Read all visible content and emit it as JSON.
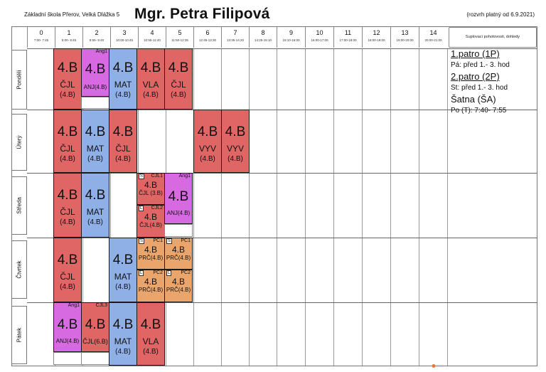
{
  "header": {
    "school": "Základní škola Přerov, Velká Dlážka 5",
    "teacher": "Mgr. Petra Filipová",
    "validity": "(rozvrh platný od 6.9.2021)"
  },
  "periods": [
    {
      "num": "0",
      "time": "7:00- 7:45"
    },
    {
      "num": "1",
      "time": "8:00- 8:45"
    },
    {
      "num": "2",
      "time": "8:55- 9:40"
    },
    {
      "num": "3",
      "time": "10:00-10:45"
    },
    {
      "num": "4",
      "time": "10:55-11:40"
    },
    {
      "num": "5",
      "time": "11:50-12:35"
    },
    {
      "num": "6",
      "time": "12:45-13:30"
    },
    {
      "num": "7",
      "time": "13:35-14:20"
    },
    {
      "num": "8",
      "time": "14:25-15:10"
    },
    {
      "num": "9",
      "time": "15:10-16:00"
    },
    {
      "num": "10",
      "time": "16:00-17:00"
    },
    {
      "num": "11",
      "time": "17:00-18:00"
    },
    {
      "num": "12",
      "time": "18:00-19:00"
    },
    {
      "num": "13",
      "time": "19:00-20:00"
    },
    {
      "num": "14",
      "time": "20:00-21:00"
    }
  ],
  "side_header": "Suplovací pohotovosti, dohledy",
  "days": [
    "Pondělí",
    "Úterý",
    "Středa",
    "Čtvrtek",
    "Pátek"
  ],
  "lessons": {
    "mon": [
      {
        "cls": "4.B",
        "subj": "ČJL",
        "grp": "(4.B)"
      },
      {
        "cls": "4.B",
        "subj": "ANJ(4.B)",
        "tag": "Ang1"
      },
      {
        "cls": "4.B",
        "subj": "MAT",
        "grp": "(4.B)"
      },
      {
        "cls": "4.B",
        "subj": "VLA",
        "grp": "(4.B)"
      },
      {
        "cls": "4.B",
        "subj": "ČJL",
        "grp": "(4.B)"
      }
    ],
    "tue": [
      {
        "cls": "4.B",
        "subj": "ČJL",
        "grp": "(4.B)"
      },
      {
        "cls": "4.B",
        "subj": "MAT",
        "grp": "(4.B)"
      },
      {
        "cls": "4.B",
        "subj": "ČJL",
        "grp": "(4.B)"
      },
      {
        "cls": "4.B",
        "subj": "VYV",
        "grp": "(4.B)"
      },
      {
        "cls": "4.B",
        "subj": "VYV",
        "grp": "(4.B)"
      }
    ],
    "wed": [
      {
        "cls": "4.B",
        "subj": "ČJL",
        "grp": "(4.B)"
      },
      {
        "cls": "4.B",
        "subj": "MAT",
        "grp": "(4.B)"
      },
      {
        "cls": "4.B",
        "subj": "ČJL (3.B)",
        "tag": "CJL1",
        "ltag": "S"
      },
      {
        "cls": "4.B",
        "subj": "ČJL(4.B)",
        "tag": "CJL2",
        "ltag": "L"
      },
      {
        "cls": "4.B",
        "subj": "ANJ(4.B)",
        "tag": "Ang1"
      }
    ],
    "thu": [
      {
        "cls": "4.B",
        "subj": "ČJL",
        "grp": "(4.B)"
      },
      {
        "cls": "4.B",
        "subj": "MAT",
        "grp": "(4.B)"
      },
      {
        "cls": "4.B",
        "subj": "PRČ(4.B)",
        "tag": "PČ1",
        "ltag": "S"
      },
      {
        "cls": "4.B",
        "subj": "PRČ(4.B)",
        "tag": "PČ1",
        "ltag": "S"
      },
      {
        "cls": "4.B",
        "subj": "PRČ(4.B)",
        "tag": "PČ2",
        "ltag": "L"
      },
      {
        "cls": "4.B",
        "subj": "PRČ(4.B)",
        "tag": "PČ2",
        "ltag": "L"
      }
    ],
    "fri": [
      {
        "cls": "4.B",
        "subj": "ANJ(4.B)",
        "tag": "Ang1"
      },
      {
        "cls": "4.B",
        "subj": "ČJL(6.B)",
        "tag": "CJL3"
      },
      {
        "cls": "4.B",
        "subj": "MAT",
        "grp": "(4.B)"
      },
      {
        "cls": "4.B",
        "subj": "VLA",
        "grp": "(4.B)"
      }
    ]
  },
  "notes": {
    "floor1": "1.patro (1P)",
    "floor1_text": "Pá: před 1.- 3. hod",
    "floor2": "2.patro (2P)",
    "floor2_text": "St: před 1.- 3. hod",
    "cloak": "Šatna (ŠA)",
    "cloak_text": "Po (T):  7:40- 7:55"
  },
  "colors": {
    "red": "#e06666",
    "blue": "#8fb0e6",
    "pink": "#d76ae0",
    "orange": "#e9a56b"
  }
}
